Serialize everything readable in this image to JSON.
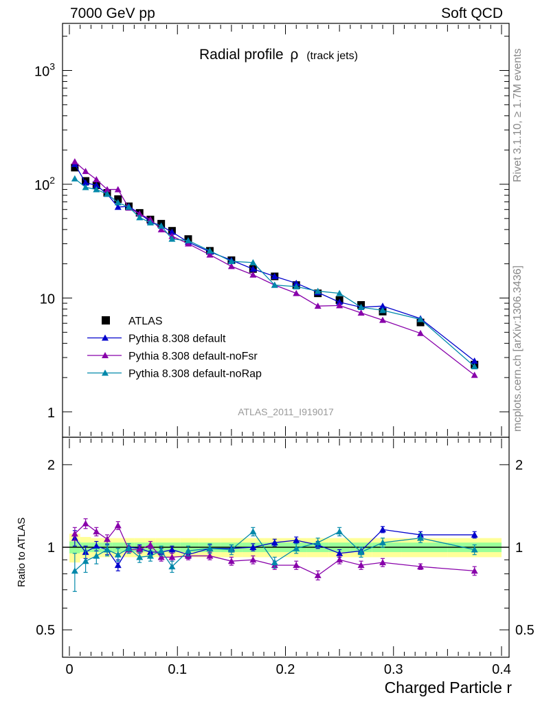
{
  "header": {
    "left": "7000 GeV pp",
    "right": "Soft QCD"
  },
  "side_text": {
    "rivet": "Rivet 3.1.10, ≥ 1.7M events",
    "mcplots": "mcplots.cern.ch [arXiv:1306.3436]"
  },
  "colors": {
    "ATLAS": "#000000",
    "default": "#0000cc",
    "noFsr": "#8800aa",
    "noRap": "#0088aa",
    "band_outer": "#ffff99",
    "band_inner": "#99ff99"
  },
  "chart_data": [
    {
      "type": "scatter",
      "title": "Radial profile",
      "title_symbol": "ρ",
      "title_suffix": "(track jets)",
      "analysis_label": "ATLAS_2011_I919017",
      "y_scale": "log",
      "xlim": [
        0,
        0.4
      ],
      "ylim": [
        0.7,
        2500
      ],
      "ytick_labels": [
        "1",
        "10",
        "10^2",
        "10^3"
      ],
      "legend": {
        "placement": "lower-left",
        "entries": [
          "ATLAS",
          "Pythia 8.308 default",
          "Pythia 8.308 default-noFsr",
          "Pythia 8.308 default-noRap"
        ]
      },
      "x": [
        0.005,
        0.015,
        0.025,
        0.035,
        0.045,
        0.055,
        0.065,
        0.075,
        0.085,
        0.095,
        0.11,
        0.13,
        0.15,
        0.17,
        0.19,
        0.21,
        0.23,
        0.25,
        0.27,
        0.29,
        0.325,
        0.375
      ],
      "series": [
        {
          "name": "ATLAS",
          "marker": "square",
          "values": [
            140,
            107,
            98,
            84,
            74,
            64,
            56,
            49,
            45,
            39,
            33,
            26,
            21.5,
            18,
            15.5,
            13,
            11,
            9.6,
            8.7,
            7.6,
            6.1,
            2.6
          ]
        },
        {
          "name": "Pythia 8.308 default",
          "marker": "triangle",
          "values": [
            150,
            103,
            98,
            82,
            63,
            64,
            55,
            47,
            43,
            38,
            31,
            25.5,
            21.5,
            18,
            15.5,
            13.5,
            11.2,
            9.2,
            8.3,
            8.5,
            6.6,
            2.8
          ]
        },
        {
          "name": "Pythia 8.308 default-noFsr",
          "marker": "triangle",
          "values": [
            158,
            130,
            110,
            90,
            90,
            62,
            55,
            49,
            40,
            35,
            30,
            24,
            19,
            16,
            13,
            11,
            8.5,
            8.6,
            7.4,
            6.4,
            4.9,
            2.1
          ]
        },
        {
          "name": "Pythia 8.308 default-noRap",
          "marker": "triangle",
          "values": [
            112,
            94,
            90,
            82,
            69,
            63,
            51,
            46,
            43,
            33,
            32,
            26,
            21,
            20.5,
            13,
            12.6,
            11.5,
            11,
            8.3,
            7.8,
            6.5,
            2.5
          ]
        }
      ]
    },
    {
      "type": "scatter",
      "ylabel": "Ratio to ATLAS",
      "xlabel": "Charged Particle r",
      "y_scale": "log",
      "xlim": [
        0,
        0.4
      ],
      "ylim": [
        0.42,
        2.4
      ],
      "ytick_labels": [
        "0.5",
        "1",
        "2"
      ],
      "xtick_labels": [
        "0",
        "0.1",
        "0.2",
        "0.3",
        "0.4"
      ],
      "reference_line": 1,
      "x": [
        0.005,
        0.015,
        0.025,
        0.035,
        0.045,
        0.055,
        0.065,
        0.075,
        0.085,
        0.095,
        0.11,
        0.13,
        0.15,
        0.17,
        0.19,
        0.21,
        0.23,
        0.25,
        0.27,
        0.29,
        0.325,
        0.375
      ],
      "band_inner": [
        0.05,
        0.04,
        0.04,
        0.04,
        0.04,
        0.04,
        0.04,
        0.04,
        0.04,
        0.04,
        0.04,
        0.04,
        0.04,
        0.04,
        0.04,
        0.04,
        0.04,
        0.04,
        0.04,
        0.04,
        0.04,
        0.04
      ],
      "band_outer": [
        0.12,
        0.09,
        0.08,
        0.08,
        0.08,
        0.08,
        0.08,
        0.08,
        0.08,
        0.08,
        0.08,
        0.08,
        0.08,
        0.08,
        0.08,
        0.08,
        0.08,
        0.08,
        0.08,
        0.08,
        0.08,
        0.08
      ],
      "series": [
        {
          "name": "Pythia 8.308 default",
          "values": [
            1.08,
            0.96,
            1.01,
            0.98,
            0.86,
            1.0,
            0.99,
            0.96,
            0.96,
            0.98,
            0.94,
            0.99,
            0.99,
            1.0,
            1.04,
            1.06,
            1.02,
            0.95,
            0.97,
            1.16,
            1.11,
            1.11
          ],
          "err": [
            0.07,
            0.05,
            0.04,
            0.04,
            0.04,
            0.03,
            0.03,
            0.03,
            0.03,
            0.03,
            0.03,
            0.03,
            0.03,
            0.03,
            0.03,
            0.03,
            0.03,
            0.03,
            0.03,
            0.03,
            0.03,
            0.03
          ]
        },
        {
          "name": "Pythia 8.308 default-noFsr",
          "values": [
            1.12,
            1.22,
            1.14,
            1.07,
            1.2,
            0.98,
            0.98,
            1.02,
            0.92,
            0.92,
            0.93,
            0.93,
            0.89,
            0.9,
            0.86,
            0.86,
            0.79,
            0.9,
            0.86,
            0.88,
            0.85,
            0.82
          ],
          "err": [
            0.06,
            0.05,
            0.04,
            0.04,
            0.04,
            0.03,
            0.03,
            0.03,
            0.03,
            0.03,
            0.03,
            0.03,
            0.03,
            0.03,
            0.03,
            0.03,
            0.03,
            0.03,
            0.03,
            0.03,
            0.02,
            0.03
          ]
        },
        {
          "name": "Pythia 8.308 default-noRap",
          "values": [
            0.82,
            0.89,
            0.93,
            0.98,
            0.94,
            0.99,
            0.92,
            0.93,
            0.97,
            0.85,
            0.97,
            0.99,
            0.98,
            1.14,
            0.88,
            0.99,
            1.04,
            1.14,
            0.96,
            1.04,
            1.08,
            0.98
          ],
          "err": [
            0.13,
            0.08,
            0.06,
            0.05,
            0.05,
            0.04,
            0.04,
            0.04,
            0.04,
            0.04,
            0.04,
            0.04,
            0.04,
            0.04,
            0.04,
            0.04,
            0.04,
            0.04,
            0.04,
            0.04,
            0.04,
            0.04
          ]
        }
      ]
    }
  ]
}
